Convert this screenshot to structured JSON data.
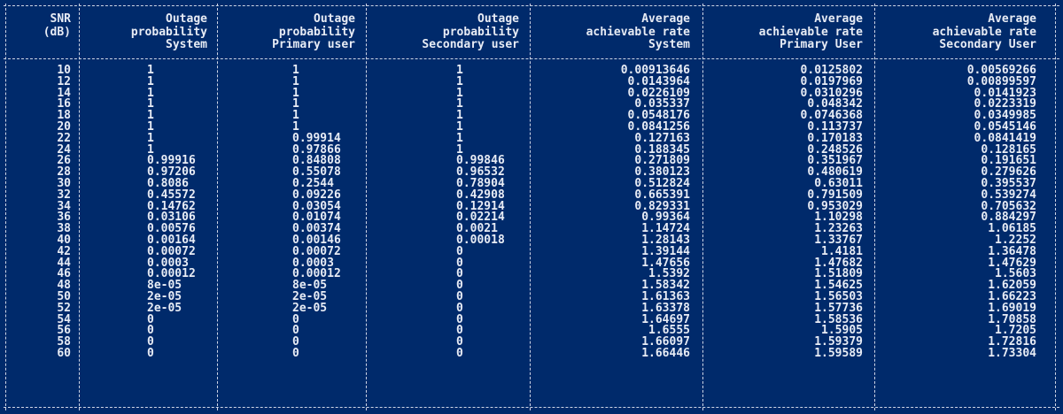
{
  "headers": [
    [
      "SNR",
      "(dB)"
    ],
    [
      "Outage",
      "probability",
      "System"
    ],
    [
      "Outage",
      "probability",
      "Primary user"
    ],
    [
      "Outage",
      "probability",
      "Secondary user"
    ],
    [
      "Average",
      "achievable rate",
      "System"
    ],
    [
      "Average",
      "achievable rate",
      "Primary User"
    ],
    [
      "Average",
      "achievable rate",
      "Secondary User"
    ]
  ],
  "rows": [
    [
      "10",
      "1",
      "1",
      "1",
      "0.00913646",
      "0.0125802",
      "0.00569266"
    ],
    [
      "12",
      "1",
      "1",
      "1",
      "0.0143964",
      "0.0197969",
      "0.00899597"
    ],
    [
      "14",
      "1",
      "1",
      "1",
      "0.0226109",
      "0.0310296",
      "0.0141923"
    ],
    [
      "16",
      "1",
      "1",
      "1",
      "0.035337",
      "0.048342",
      "0.0223319"
    ],
    [
      "18",
      "1",
      "1",
      "1",
      "0.0548176",
      "0.0746368",
      "0.0349985"
    ],
    [
      "20",
      "1",
      "1",
      "1",
      "0.0841256",
      "0.113737",
      "0.0545146"
    ],
    [
      "22",
      "1",
      "0.99914",
      "1",
      "0.127163",
      "0.170183",
      "0.0841419"
    ],
    [
      "24",
      "1",
      "0.97866",
      "1",
      "0.188345",
      "0.248526",
      "0.128165"
    ],
    [
      "26",
      "0.99916",
      "0.84808",
      "0.99846",
      "0.271809",
      "0.351967",
      "0.191651"
    ],
    [
      "28",
      "0.97206",
      "0.55078",
      "0.96532",
      "0.380123",
      "0.480619",
      "0.279626"
    ],
    [
      "30",
      "0.8086",
      "0.2544",
      "0.78904",
      "0.512824",
      "0.63011",
      "0.395537"
    ],
    [
      "32",
      "0.45572",
      "0.09226",
      "0.42908",
      "0.665391",
      "0.791509",
      "0.539274"
    ],
    [
      "34",
      "0.14762",
      "0.03054",
      "0.12914",
      "0.829331",
      "0.953029",
      "0.705632"
    ],
    [
      "36",
      "0.03106",
      "0.01074",
      "0.02214",
      "0.99364",
      "1.10298",
      "0.884297"
    ],
    [
      "38",
      "0.00576",
      "0.00374",
      "0.0021",
      "1.14724",
      "1.23263",
      "1.06185"
    ],
    [
      "40",
      "0.00164",
      "0.00146",
      "0.00018",
      "1.28143",
      "1.33767",
      "1.2252"
    ],
    [
      "42",
      "0.00072",
      "0.00072",
      "0",
      "1.39144",
      "1.4181",
      "1.36478"
    ],
    [
      "44",
      "0.0003",
      "0.0003",
      "0",
      "1.47656",
      "1.47682",
      "1.47629"
    ],
    [
      "46",
      "0.00012",
      "0.00012",
      "0",
      "1.5392",
      "1.51809",
      "1.5603"
    ],
    [
      "48",
      "8e-05",
      "8e-05",
      "0",
      "1.58342",
      "1.54625",
      "1.62059"
    ],
    [
      "50",
      "2e-05",
      "2e-05",
      "0",
      "1.61363",
      "1.56503",
      "1.66223"
    ],
    [
      "52",
      "2e-05",
      "2e-05",
      "0",
      "1.63378",
      "1.57736",
      "1.69019"
    ],
    [
      "54",
      "0",
      "0",
      "0",
      "1.64697",
      "1.58536",
      "1.70858"
    ],
    [
      "56",
      "0",
      "0",
      "0",
      "1.6555",
      "1.5905",
      "1.7205"
    ],
    [
      "58",
      "0",
      "0",
      "0",
      "1.66097",
      "1.59379",
      "1.72816"
    ],
    [
      "60",
      "0",
      "0",
      "0",
      "1.66446",
      "1.59589",
      "1.73304"
    ]
  ],
  "colors": {
    "background": "#002a6b",
    "text": "#e8ecf5",
    "rule": "#cfd6e6"
  }
}
